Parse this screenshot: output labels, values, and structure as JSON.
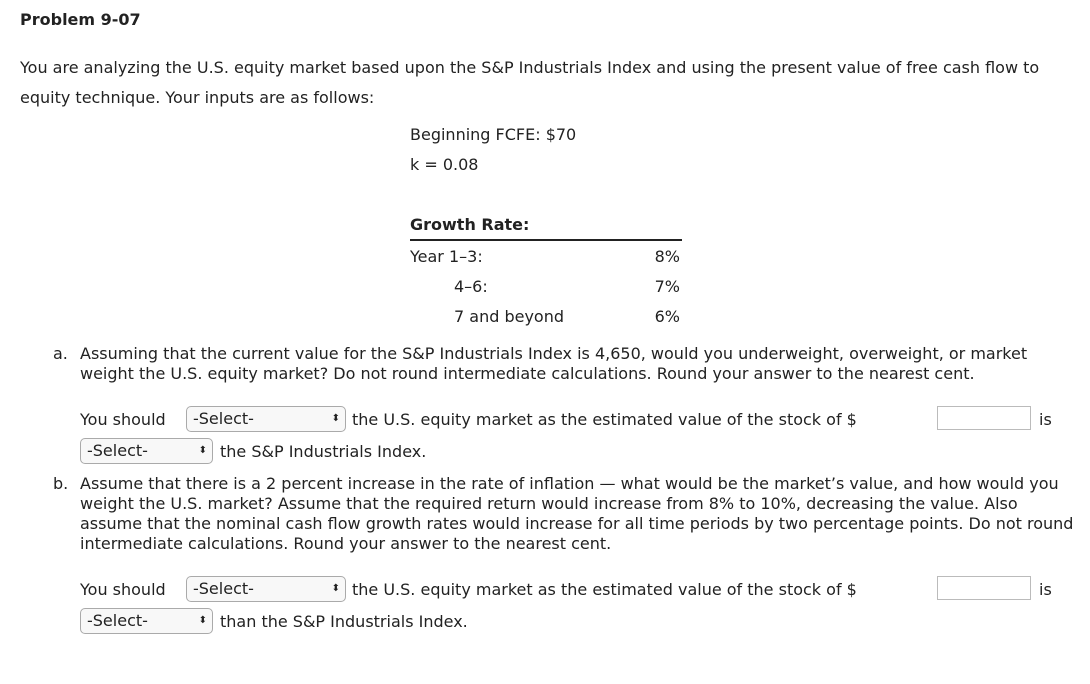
{
  "title": "Problem 9-07",
  "intro": "You are analyzing the U.S. equity market based upon the S&P Industrials Index and using the present value of free cash flow to equity technique. Your inputs are as follows:",
  "inputs": {
    "fcfe": "Beginning FCFE: $70",
    "k": "k = 0.08"
  },
  "growth": {
    "heading": "Growth Rate:",
    "rows": [
      {
        "label": "Year 1–3:",
        "value": "8%"
      },
      {
        "label": "4–6:",
        "value": "7%"
      },
      {
        "label": "7 and beyond",
        "value": "6%"
      }
    ]
  },
  "part_a": {
    "label": "a.",
    "text": "Assuming that the current value for the S&P Industrials Index is 4,650, would you underweight, overweight, or market weight the U.S. equity market? Do not round intermediate calculations. Round your answer to the nearest cent.",
    "you_should": "You should",
    "select1": "-Select-",
    "middle": "the U.S. equity market as the estimated value of the stock of $",
    "value": "",
    "is": "is",
    "select2": "-Select-",
    "end": "the S&P Industrials Index."
  },
  "part_b": {
    "label": "b.",
    "text": "Assume that there is a 2 percent increase in the rate of inflation — what would be the market’s value, and how would you weight the U.S. market? Assume that the required return would increase from 8% to 10%, decreasing the value. Also assume that the nominal cash flow growth rates would increase for all time periods by two percentage points. Do not round intermediate calculations. Round your answer to the nearest cent.",
    "you_should": "You should",
    "select1": "-Select-",
    "middle": "the U.S. equity market as the estimated value of the stock of $",
    "value": "",
    "is": "is",
    "select2": "-Select-",
    "end": "than the S&P Industrials Index."
  }
}
